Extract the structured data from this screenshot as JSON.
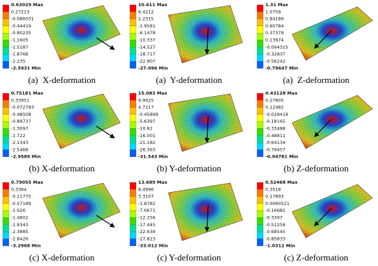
{
  "panels": [
    {
      "legend": [
        "0.63029 Max",
        "0.27213",
        "-0.086031",
        "-0.44419",
        "-0.80235",
        "-1.1605",
        "-1.5187",
        "-1.8768",
        "-2.235",
        "-2.5931 Min"
      ],
      "caption": "(a)  X-deformation"
    },
    {
      "legend": [
        "10.611 Max",
        "6.4212",
        "2.2315",
        "-1.9581",
        "-6.1478",
        "-10.337",
        "-14.527",
        "-18.717",
        "-22.907",
        "-27.096 Min"
      ],
      "caption": "(a)  Y-deformation"
    },
    {
      "legend": [
        "1.31 Max",
        "1.0759",
        "0.84189",
        "0.60784",
        "0.37379",
        "0.13974",
        "-0.094315",
        "-0.32837",
        "-0.56242",
        "-0.79647 Min"
      ],
      "caption": "(a)  Z-deformation"
    },
    {
      "legend": [
        "0.75181 Max",
        "0.33951",
        "-0.072783",
        "-0.48508",
        "-0.89737",
        "-1.3097",
        "-1.722",
        "-2.1343",
        "-2.5466",
        "-2.9589 Min"
      ],
      "caption": "(b) X-deformation"
    },
    {
      "legend": [
        "15.083 Max",
        "9.9025",
        "4.7217",
        "-0.45899",
        "-5.6397",
        "-10.82",
        "-16.001",
        "-21.182",
        "-26.363",
        "-31.543 Min"
      ],
      "caption": "(b) Y-deformation"
    },
    {
      "legend": [
        "0.43128 Max",
        "0.27805",
        "0.12482",
        "-0.028416",
        "-0.18165",
        "-0.33488",
        "-0.48811",
        "-0.64134",
        "-0.79457",
        "-0.94781 Min"
      ],
      "caption": "(b) Z-deformation"
    },
    {
      "legend": [
        "0.79055 Max",
        "0.3364",
        "-0.11775",
        "-0.57189",
        "-1.026",
        "-1.4802",
        "-1.9343",
        "-2.3885",
        "-2.8426",
        "-3.2968 Min"
      ],
      "caption": "(c) X-deformation"
    },
    {
      "legend": [
        "13.689 Max",
        "8.4996",
        "3.3107",
        "-1.8782",
        "-7.0671",
        "-12.256",
        "-17.445",
        "-22.634",
        "-27.823",
        "-33.012 Min"
      ],
      "caption": "(c) Y-deformation"
    },
    {
      "legend": [
        "0.52468 Max",
        "0.3518",
        "0.17893",
        "0.0060521",
        "-0.16682",
        "-0.3397",
        "-0.51258",
        "-0.68545",
        "-0.85833",
        "-1.0312 Min"
      ],
      "caption": "(c) Z-deformation"
    }
  ]
}
